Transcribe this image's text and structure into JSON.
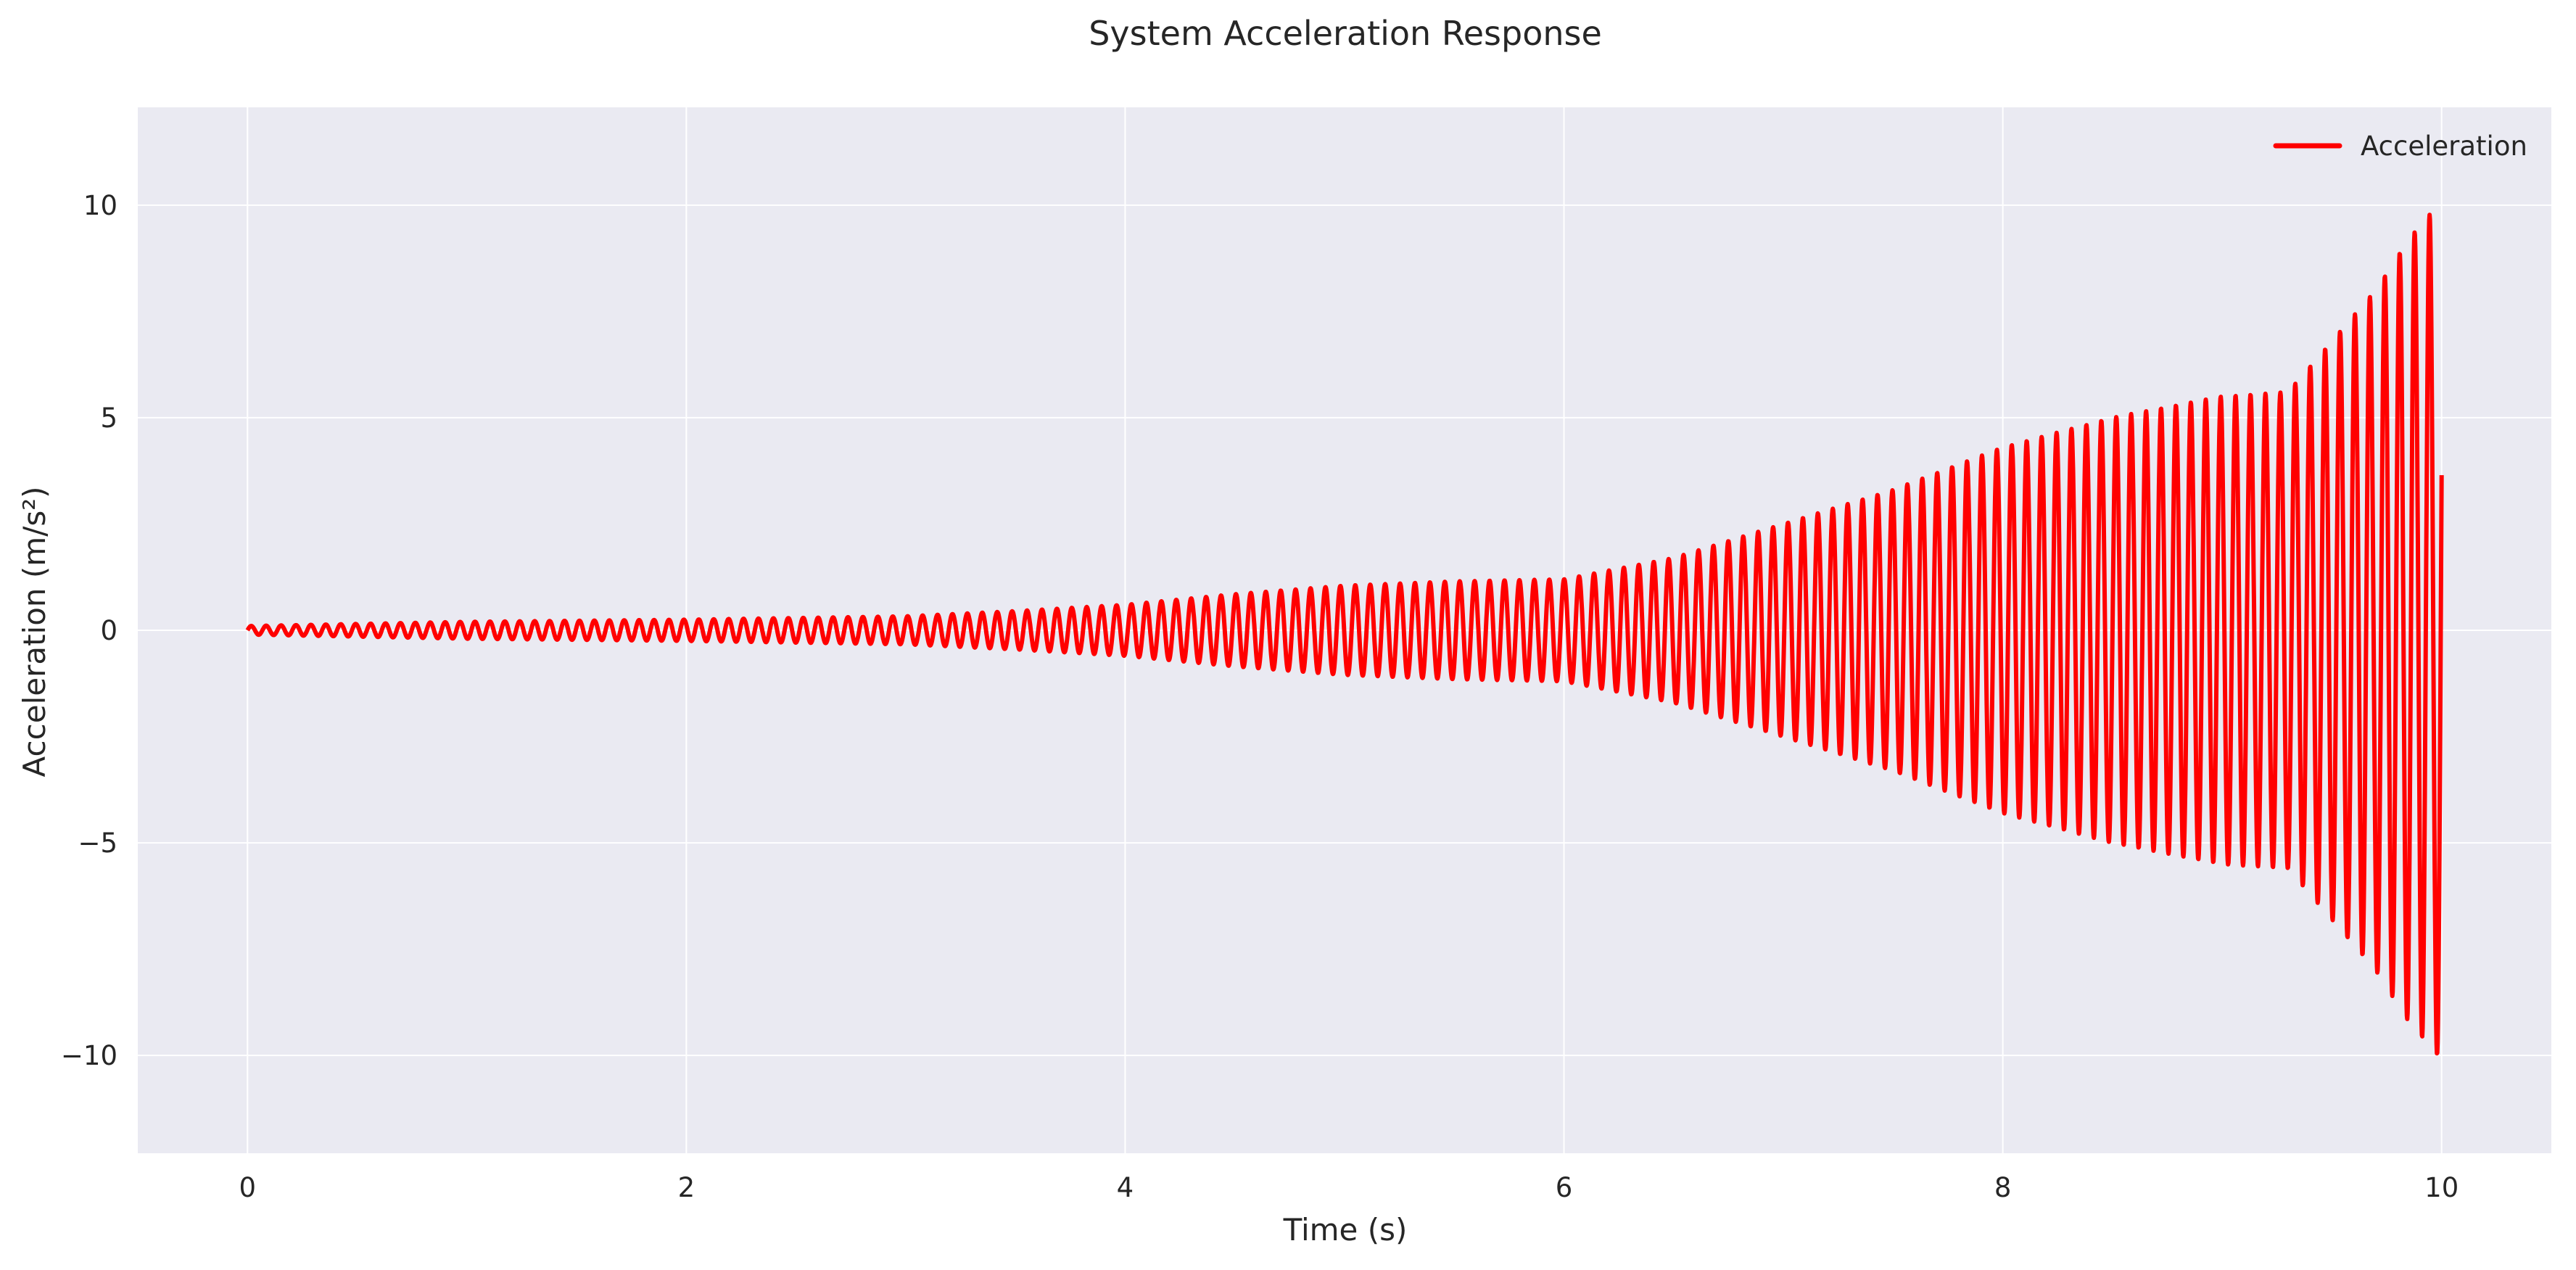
{
  "chart_data": {
    "type": "line",
    "title": "System Acceleration Response",
    "xlabel": "Time (s)",
    "ylabel": "Acceleration (m/s²)",
    "xlim": [
      -0.5,
      10.5
    ],
    "ylim": [
      -12.3,
      12.3
    ],
    "xticks": [
      0,
      2,
      4,
      6,
      8,
      10
    ],
    "xtick_labels": [
      "0",
      "2",
      "4",
      "6",
      "8",
      "10"
    ],
    "yticks": [
      -10,
      -5,
      0,
      5,
      10
    ],
    "ytick_labels": [
      "−10",
      "−5",
      "0",
      "5",
      "10"
    ],
    "grid": true,
    "legend_placement": "top-right",
    "plot_background": "#eaeaf2",
    "grid_color": "#ffffff",
    "series": [
      {
        "name": "Acceleration",
        "color": "#ff0000",
        "x_range": [
          0,
          10
        ],
        "cycle_period_s": 0.068,
        "envelope": [
          {
            "t": 0.0,
            "amp": 0.1
          },
          {
            "t": 1.0,
            "amp": 0.2
          },
          {
            "t": 2.0,
            "amp": 0.25
          },
          {
            "t": 3.0,
            "amp": 0.33
          },
          {
            "t": 3.5,
            "amp": 0.45
          },
          {
            "t": 4.0,
            "amp": 0.6
          },
          {
            "t": 4.5,
            "amp": 0.85
          },
          {
            "t": 5.0,
            "amp": 1.05
          },
          {
            "t": 5.5,
            "amp": 1.15
          },
          {
            "t": 6.0,
            "amp": 1.2
          },
          {
            "t": 6.5,
            "amp": 1.7
          },
          {
            "t": 7.0,
            "amp": 2.5
          },
          {
            "t": 7.5,
            "amp": 3.3
          },
          {
            "t": 8.0,
            "amp": 4.3
          },
          {
            "t": 8.5,
            "amp": 5.0
          },
          {
            "t": 9.0,
            "amp": 5.5
          },
          {
            "t": 9.3,
            "amp": 5.6
          },
          {
            "t": 9.5,
            "amp": 6.8
          },
          {
            "t": 9.7,
            "amp": 8.0
          },
          {
            "t": 9.85,
            "amp": 9.2
          },
          {
            "t": 10.0,
            "amp": 10.1
          }
        ]
      }
    ]
  }
}
